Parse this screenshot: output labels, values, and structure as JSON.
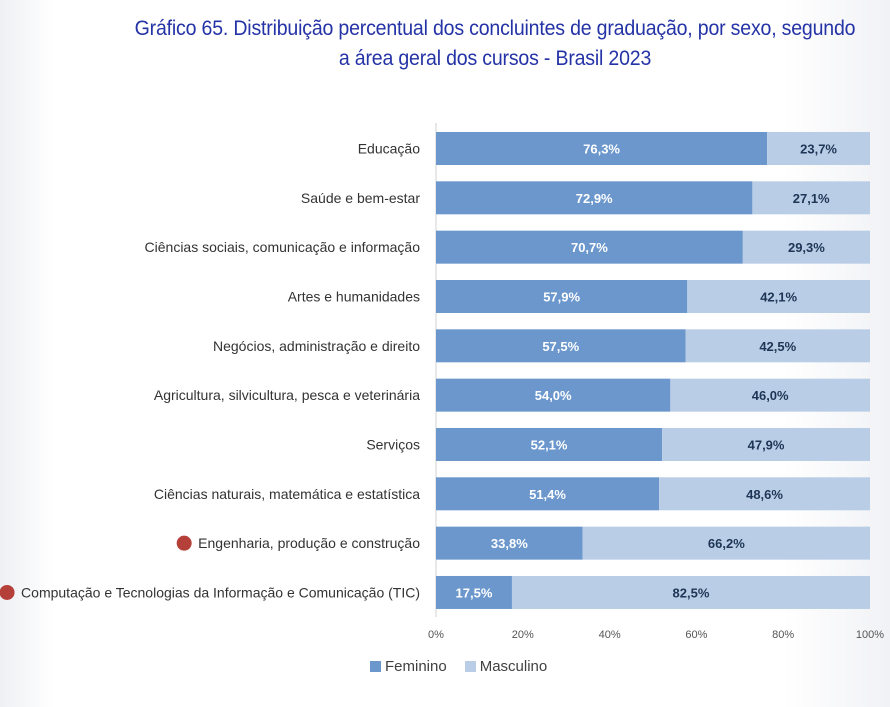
{
  "title": "Gráfico 65. Distribuição percentual dos concluintes de graduação, por sexo, segundo a área geral dos cursos - Brasil 2023",
  "colors": {
    "feminino": "#6b97cc",
    "masculino": "#b9cde6",
    "marker": "#b5403a",
    "title": "#2433a6"
  },
  "chart_data": {
    "type": "bar",
    "orientation": "horizontal",
    "stacked": true,
    "title": "Gráfico 65. Distribuição percentual dos concluintes de graduação, por sexo, segundo a área geral dos cursos - Brasil 2023",
    "categories": [
      "Educação",
      "Saúde e bem-estar",
      "Ciências sociais, comunicação e informação",
      "Artes e humanidades",
      "Negócios, administração e direito",
      "Agricultura, silvicultura, pesca e veterinária",
      "Serviços",
      "Ciências naturais, matemática e estatística",
      "Engenharia, produção e construção",
      "Computação e Tecnologias da Informação e Comunicação (TIC)"
    ],
    "highlighted": [
      false,
      false,
      false,
      false,
      false,
      false,
      false,
      false,
      true,
      true
    ],
    "series": [
      {
        "name": "Feminino",
        "values": [
          76.3,
          72.9,
          70.7,
          57.9,
          57.5,
          54.0,
          52.1,
          51.4,
          33.8,
          17.5
        ],
        "labels": [
          "76,3%",
          "72,9%",
          "70,7%",
          "57,9%",
          "57,5%",
          "54,0%",
          "52,1%",
          "51,4%",
          "33,8%",
          "17,5%"
        ]
      },
      {
        "name": "Masculino",
        "values": [
          23.7,
          27.1,
          29.3,
          42.1,
          42.5,
          46.0,
          47.9,
          48.6,
          66.2,
          82.5
        ],
        "labels": [
          "23,7%",
          "27,1%",
          "29,3%",
          "42,1%",
          "42,5%",
          "46,0%",
          "47,9%",
          "48,6%",
          "66,2%",
          "82,5%"
        ]
      }
    ],
    "xlim": [
      0,
      100
    ],
    "x_ticks": [
      "0%",
      "20%",
      "40%",
      "60%",
      "80%",
      "100%"
    ],
    "grid": false,
    "legend_position": "bottom"
  },
  "legend": {
    "feminino_label": "Feminino",
    "masculino_label": "Masculino"
  }
}
